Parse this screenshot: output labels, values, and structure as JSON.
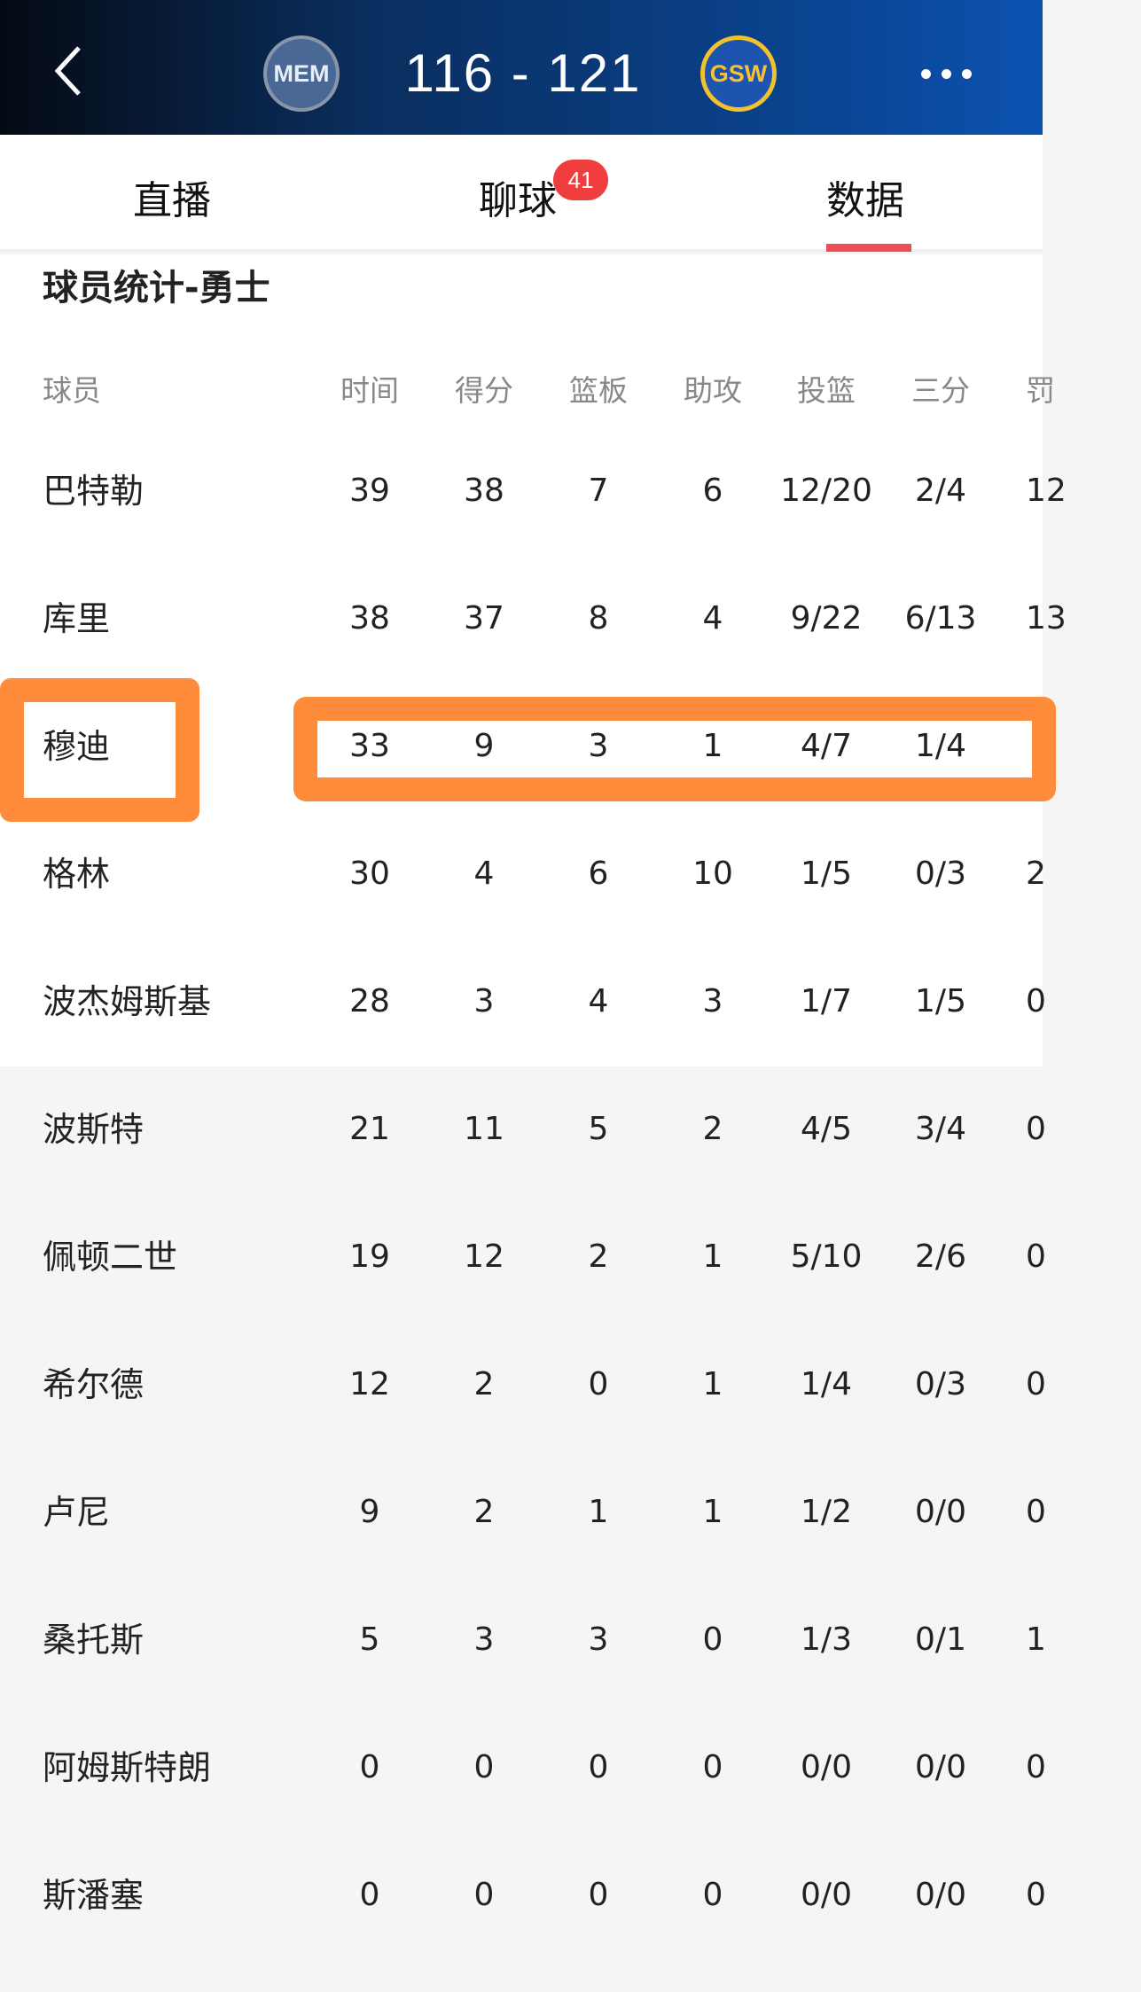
{
  "header": {
    "home_team": "MEM",
    "away_team": "GSW",
    "score": "116 - 121"
  },
  "tabs": [
    {
      "label": "直播"
    },
    {
      "label": "聊球",
      "badge": "41"
    },
    {
      "label": "数据",
      "active": true
    }
  ],
  "section_title": "球员统计-勇士",
  "columns": [
    "球员",
    "时间",
    "得分",
    "篮板",
    "助攻",
    "投篮",
    "三分",
    "罚"
  ],
  "rows": [
    [
      "巴特勒",
      "39",
      "38",
      "7",
      "6",
      "12/20",
      "2/4",
      "12"
    ],
    [
      "库里",
      "38",
      "37",
      "8",
      "4",
      "9/22",
      "6/13",
      "13"
    ],
    [
      "穆迪",
      "33",
      "9",
      "3",
      "1",
      "4/7",
      "1/4",
      ""
    ],
    [
      "格林",
      "30",
      "4",
      "6",
      "10",
      "1/5",
      "0/3",
      "2"
    ],
    [
      "波杰姆斯基",
      "28",
      "3",
      "4",
      "3",
      "1/7",
      "1/5",
      "0"
    ],
    [
      "波斯特",
      "21",
      "11",
      "5",
      "2",
      "4/5",
      "3/4",
      "0"
    ],
    [
      "佩顿二世",
      "19",
      "12",
      "2",
      "1",
      "5/10",
      "2/6",
      "0"
    ],
    [
      "希尔德",
      "12",
      "2",
      "0",
      "1",
      "1/4",
      "0/3",
      "0"
    ],
    [
      "卢尼",
      "9",
      "2",
      "1",
      "1",
      "1/2",
      "0/0",
      "0"
    ],
    [
      "桑托斯",
      "5",
      "3",
      "3",
      "0",
      "1/3",
      "0/1",
      "1"
    ],
    [
      "阿姆斯特朗",
      "0",
      "0",
      "0",
      "0",
      "0/0",
      "0/0",
      "0"
    ],
    [
      "斯潘塞",
      "0",
      "0",
      "0",
      "0",
      "0/0",
      "0/0",
      "0"
    ]
  ],
  "highlight_color": "#ff8c3a",
  "accent_color": "#ee4d55"
}
